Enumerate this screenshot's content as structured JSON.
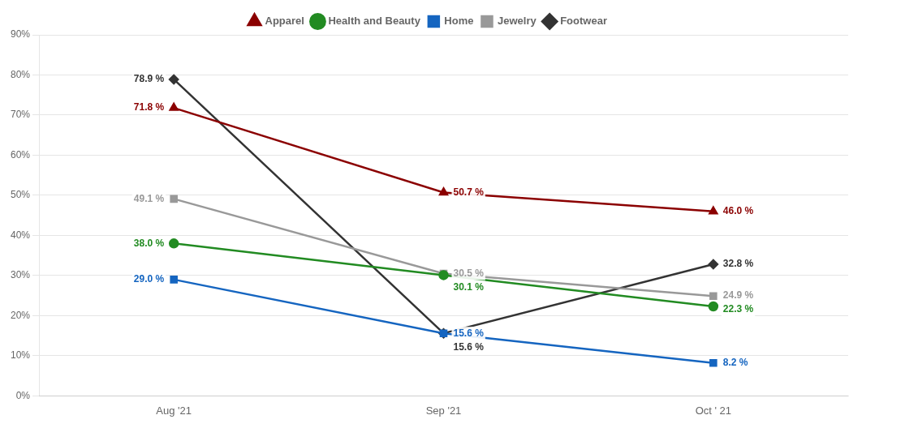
{
  "chart_data": {
    "type": "line",
    "categories": [
      "Aug '21",
      "Sep '21",
      "Oct ' 21"
    ],
    "series": [
      {
        "name": "Apparel",
        "color": "#8B0000",
        "marker": "triangle",
        "values": [
          71.8,
          50.7,
          46.0
        ],
        "value_labels": [
          "71.8 %",
          "50.7 %",
          "46.0 %"
        ]
      },
      {
        "name": "Health and Beauty",
        "color": "#228B22",
        "marker": "circle",
        "values": [
          38.0,
          30.1,
          22.3
        ],
        "value_labels": [
          "38.0 %",
          "30.1 %",
          "22.3 %"
        ]
      },
      {
        "name": "Home",
        "color": "#1565C0",
        "marker": "square",
        "values": [
          29.0,
          15.6,
          8.2
        ],
        "value_labels": [
          "29.0 %",
          "15.6 %",
          "8.2 %"
        ]
      },
      {
        "name": "Jewelry",
        "color": "#999999",
        "marker": "square",
        "values": [
          49.1,
          30.5,
          24.9
        ],
        "value_labels": [
          "49.1 %",
          "30.5 %",
          "24.9 %"
        ]
      },
      {
        "name": "Footwear",
        "color": "#333333",
        "marker": "diamond",
        "values": [
          78.9,
          15.6,
          32.8
        ],
        "value_labels": [
          "78.9 %",
          "15.6 %",
          "32.8 %"
        ]
      }
    ],
    "ylim": [
      0,
      90
    ],
    "yticks": [
      {
        "value": 0,
        "label": "0%"
      },
      {
        "value": 10,
        "label": "10%"
      },
      {
        "value": 20,
        "label": "20%"
      },
      {
        "value": 30,
        "label": "30%"
      },
      {
        "value": 40,
        "label": "40%"
      },
      {
        "value": 50,
        "label": "50%"
      },
      {
        "value": 60,
        "label": "60%"
      },
      {
        "value": 70,
        "label": "70%"
      },
      {
        "value": 80,
        "label": "80%"
      },
      {
        "value": 90,
        "label": "90%"
      }
    ],
    "grid": "y",
    "legend": "top",
    "data_labels": true
  }
}
